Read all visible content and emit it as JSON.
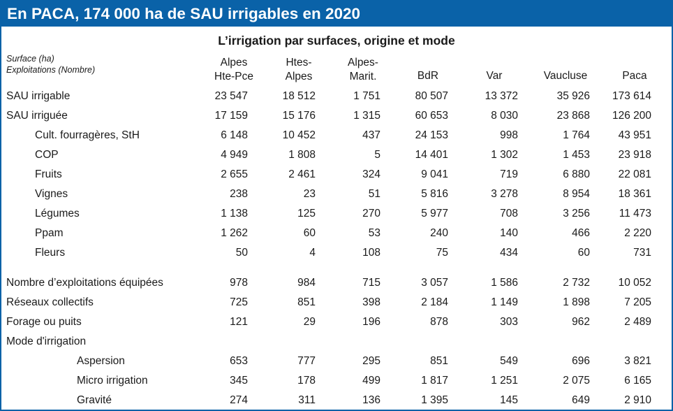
{
  "banner_title": "En PACA, 174 000 ha de SAU irrigables en 2020",
  "table": {
    "title": "L’irrigation par surfaces, origine et mode",
    "unit_lines": [
      "Surface (ha)",
      "Exploitations (Nombre)"
    ],
    "columns": [
      [
        "Alpes",
        "Hte-Pce"
      ],
      [
        "Htes-",
        "Alpes"
      ],
      [
        "Alpes-",
        "Marit."
      ],
      [
        "BdR"
      ],
      [
        "Var"
      ],
      [
        "Vaucluse"
      ],
      [
        "Paca"
      ]
    ],
    "rows": [
      {
        "label": "SAU irrigable",
        "level": 0,
        "values": [
          "23 547",
          "18 512",
          "1 751",
          "80 507",
          "13 372",
          "35 926",
          "173 614"
        ]
      },
      {
        "label": "SAU irriguée",
        "level": 0,
        "values": [
          "17 159",
          "15 176",
          "1 315",
          "60 653",
          "8 030",
          "23 868",
          "126 200"
        ]
      },
      {
        "label": "Cult. fourragères, StH",
        "level": 1,
        "values": [
          "6 148",
          "10 452",
          "437",
          "24 153",
          "998",
          "1 764",
          "43 951"
        ]
      },
      {
        "label": "COP",
        "level": 1,
        "values": [
          "4 949",
          "1 808",
          "5",
          "14 401",
          "1 302",
          "1 453",
          "23 918"
        ]
      },
      {
        "label": "Fruits",
        "level": 1,
        "values": [
          "2 655",
          "2 461",
          "324",
          "9 041",
          "719",
          "6 880",
          "22 081"
        ]
      },
      {
        "label": "Vignes",
        "level": 1,
        "values": [
          "238",
          "23",
          "51",
          "5 816",
          "3 278",
          "8 954",
          "18 361"
        ]
      },
      {
        "label": "Légumes",
        "level": 1,
        "values": [
          "1 138",
          "125",
          "270",
          "5 977",
          "708",
          "3 256",
          "11 473"
        ]
      },
      {
        "label": "Ppam",
        "level": 1,
        "values": [
          "1 262",
          "60",
          "53",
          "240",
          "140",
          "466",
          "2 220"
        ]
      },
      {
        "label": "Fleurs",
        "level": 1,
        "values": [
          "50",
          "4",
          "108",
          "75",
          "434",
          "60",
          "731"
        ]
      },
      {
        "label": "Nombre d’exploitations équipées",
        "level": 0,
        "values": [
          "978",
          "984",
          "715",
          "3 057",
          "1 586",
          "2 732",
          "10 052"
        ]
      },
      {
        "label": "Réseaux collectifs",
        "level": 0,
        "values": [
          "725",
          "851",
          "398",
          "2 184",
          "1 149",
          "1 898",
          "7 205"
        ]
      },
      {
        "label": "Forage ou puits",
        "level": 0,
        "values": [
          "121",
          "29",
          "196",
          "878",
          "303",
          "962",
          "2 489"
        ]
      },
      {
        "label": "Mode d'irrigation",
        "level": 0,
        "values": []
      },
      {
        "label": "Aspersion",
        "level": 2,
        "values": [
          "653",
          "777",
          "295",
          "851",
          "549",
          "696",
          "3 821"
        ]
      },
      {
        "label": "Micro irrigation",
        "level": 2,
        "values": [
          "345",
          "178",
          "499",
          "1 817",
          "1 251",
          "2 075",
          "6 165"
        ]
      },
      {
        "label": "Gravité",
        "level": 2,
        "values": [
          "274",
          "311",
          "136",
          "1 395",
          "145",
          "649",
          "2 910"
        ]
      }
    ]
  }
}
